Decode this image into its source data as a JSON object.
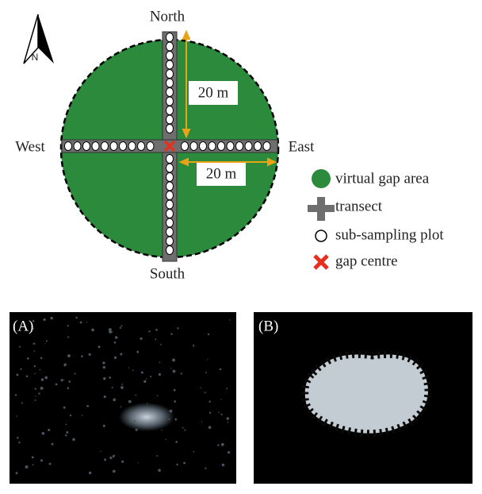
{
  "compass": {
    "north": "North",
    "south": "South",
    "west": "West",
    "east": "East",
    "north_arrow": "N"
  },
  "distances": {
    "vertical": "20 m",
    "horizontal": "20 m"
  },
  "legend": [
    "virtual gap area",
    "transect",
    "sub-sampling plot",
    "gap centre"
  ],
  "photos": [
    "(A)",
    "(B)"
  ]
}
